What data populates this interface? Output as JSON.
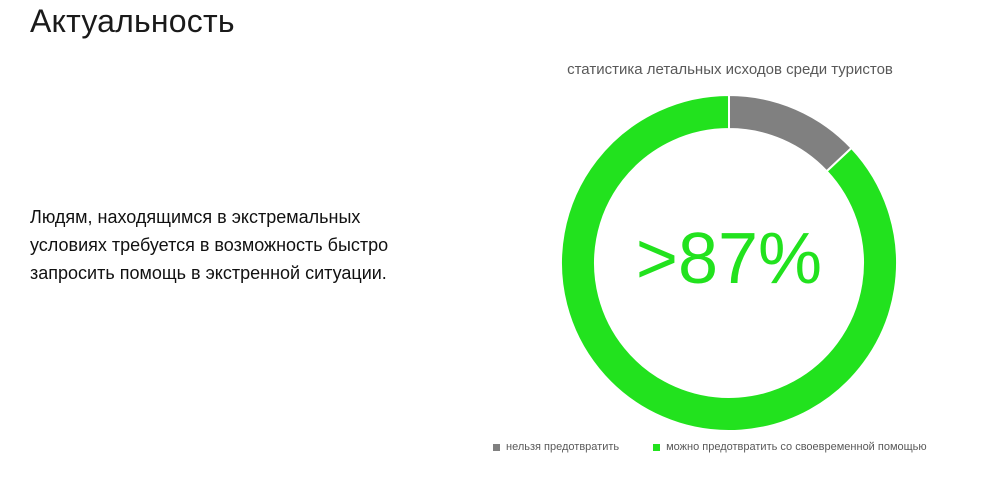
{
  "slide": {
    "title": "Актуальность",
    "body_text": "Людям, находящимся в экстремальных условиях требуется в возможность быстро запросить помощь в экстренной ситуации."
  },
  "chart_data": {
    "type": "pie",
    "variant": "doughnut",
    "title": "статистика летальных исходов среди туристов",
    "center_label": ">87%",
    "center_label_color": "#22e21e",
    "legend_position": "bottom",
    "series": [
      {
        "name": "нельзя предотвратить",
        "value": 13,
        "color": "#808080"
      },
      {
        "name": "можно предотвратить со своевременной помощью",
        "value": 87,
        "color": "#22e21e"
      }
    ]
  }
}
